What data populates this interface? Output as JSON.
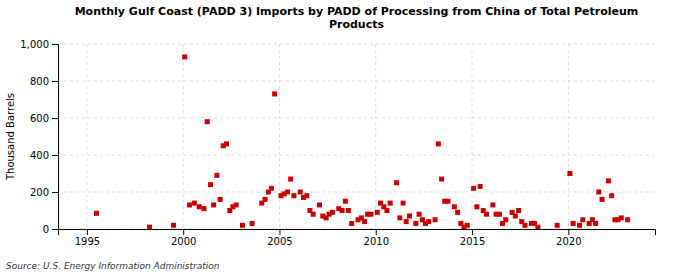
{
  "chart_data": {
    "type": "scatter",
    "title": "Monthly Gulf Coast (PADD 3) Imports by PADD of Processing from China of Total Petroleum\nProducts",
    "y_label": "Thousand Barrels",
    "annotations": [
      "Source: U.S. Energy Information Administration"
    ],
    "color": "#cc0000",
    "marker": "square",
    "grid": true,
    "xlim": [
      1993.5,
      2024.5
    ],
    "ylim": [
      0,
      1000
    ],
    "xticks": [
      1995,
      2000,
      2005,
      2010,
      2015,
      2020
    ],
    "yticks": [
      0,
      200,
      400,
      600,
      800,
      {
        "value": 1000,
        "label": "1,000"
      }
    ],
    "x": [
      1995.5,
      1998.25,
      1999.5,
      2000.08,
      2000.33,
      2000.58,
      2000.83,
      2001.08,
      2001.25,
      2001.42,
      2001.58,
      2001.75,
      2001.92,
      2002.08,
      2002.25,
      2002.42,
      2002.58,
      2002.75,
      2003.08,
      2003.58,
      2004.08,
      2004.25,
      2004.42,
      2004.58,
      2004.75,
      2005.08,
      2005.25,
      2005.42,
      2005.58,
      2005.75,
      2006.08,
      2006.25,
      2006.42,
      2006.58,
      2006.75,
      2007.08,
      2007.25,
      2007.42,
      2007.58,
      2007.75,
      2008.08,
      2008.25,
      2008.42,
      2008.58,
      2008.75,
      2009.08,
      2009.25,
      2009.42,
      2009.58,
      2009.75,
      2010.08,
      2010.25,
      2010.42,
      2010.58,
      2010.75,
      2011.08,
      2011.25,
      2011.42,
      2011.58,
      2011.75,
      2012.08,
      2012.25,
      2012.42,
      2012.58,
      2012.75,
      2013.08,
      2013.25,
      2013.42,
      2013.58,
      2013.75,
      2014.08,
      2014.25,
      2014.42,
      2014.58,
      2014.75,
      2015.08,
      2015.25,
      2015.42,
      2015.58,
      2015.75,
      2016.08,
      2016.25,
      2016.42,
      2016.58,
      2016.75,
      2017.08,
      2017.25,
      2017.42,
      2017.58,
      2017.75,
      2018.08,
      2018.25,
      2018.42,
      2019.42,
      2020.08,
      2020.25,
      2020.58,
      2020.75,
      2021.08,
      2021.25,
      2021.42,
      2021.58,
      2021.75,
      2022.08,
      2022.25,
      2022.42,
      2022.58,
      2022.75,
      2023.08
    ],
    "values": [
      85,
      10,
      20,
      930,
      130,
      140,
      120,
      110,
      580,
      240,
      130,
      290,
      160,
      450,
      460,
      100,
      120,
      130,
      20,
      30,
      140,
      160,
      200,
      220,
      730,
      180,
      190,
      200,
      270,
      180,
      200,
      170,
      180,
      100,
      80,
      130,
      70,
      60,
      80,
      90,
      110,
      100,
      150,
      100,
      30,
      50,
      60,
      40,
      80,
      80,
      90,
      140,
      120,
      100,
      140,
      250,
      60,
      140,
      40,
      70,
      30,
      80,
      50,
      30,
      40,
      50,
      460,
      270,
      150,
      150,
      120,
      90,
      30,
      10,
      20,
      220,
      120,
      230,
      100,
      80,
      130,
      80,
      80,
      30,
      50,
      90,
      70,
      100,
      40,
      20,
      30,
      30,
      10,
      20,
      300,
      30,
      20,
      50,
      30,
      50,
      30,
      200,
      160,
      260,
      180,
      50,
      50,
      60,
      50
    ]
  }
}
